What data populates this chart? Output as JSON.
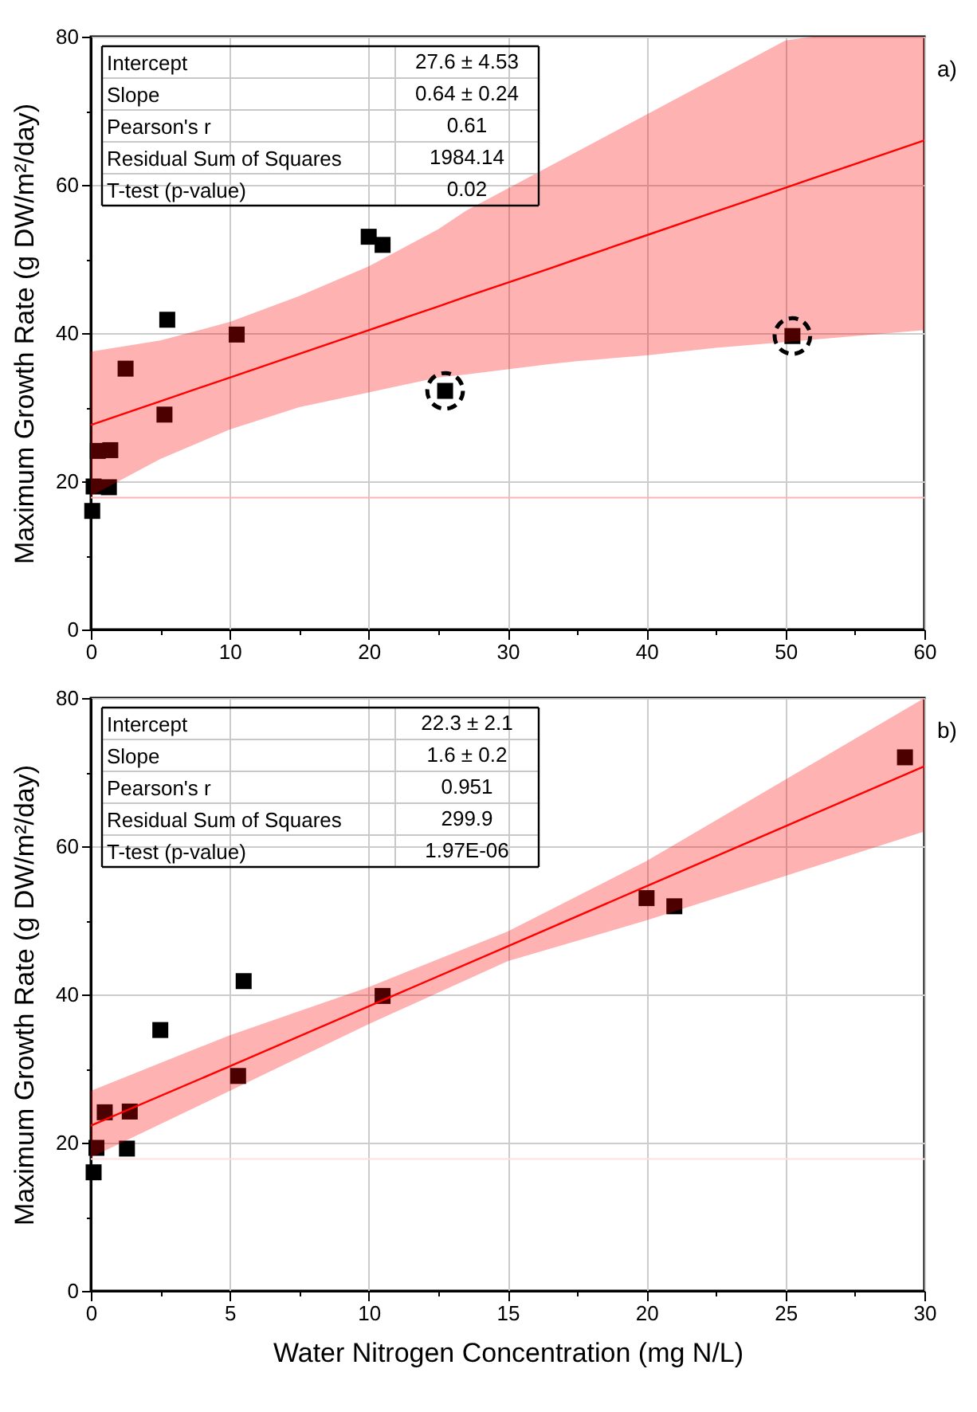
{
  "chart_data": [
    {
      "type": "scatter",
      "xlim": [
        0,
        60
      ],
      "ylim": [
        0,
        80
      ],
      "xticks": [
        0,
        {
          "value": 5,
          "label": null
        },
        10,
        {
          "value": 15,
          "label": null
        },
        20,
        {
          "value": 25,
          "label": null
        },
        30,
        {
          "value": 35,
          "label": null
        },
        40,
        {
          "value": 45,
          "label": null
        },
        50,
        {
          "value": 55,
          "label": null
        },
        60
      ],
      "yticks": [
        0,
        {
          "value": 10,
          "label": null
        },
        20,
        {
          "value": 30,
          "label": null
        },
        40,
        {
          "value": 50,
          "label": null
        },
        60,
        {
          "value": 70,
          "label": null
        },
        80
      ],
      "ylabel": "Maximum Growth Rate (g DW/m²/day)",
      "grid": true,
      "legend": false,
      "annotations": [
        "Intercept",
        "27.6 ± 4.53",
        "Slope",
        "0.64 ± 0.24",
        "Pearson's r",
        "0.61",
        "Residual Sum of Squares",
        "1984.14",
        "T-test (p-value)",
        "0.02",
        "a)"
      ],
      "ref_lines": [
        {
          "axis": "y",
          "value": 17.8,
          "color": "#ffb3b3"
        }
      ],
      "series": [
        {
          "marker": "square",
          "color": "#000000",
          "x": [
            0.1,
            0.2,
            0.5,
            1.3,
            1.4,
            2.5,
            5.3,
            5.5,
            10.5,
            20,
            21,
            25.5,
            50.5
          ],
          "values": [
            16,
            19.3,
            24.1,
            19.2,
            24.2,
            35.2,
            29,
            41.8,
            39.8,
            53,
            51.9,
            32.2,
            39.6
          ]
        },
        {
          "type": "line",
          "color": "#ff0000",
          "x": [
            0,
            5,
            10,
            15,
            20,
            25,
            27,
            33,
            35,
            40,
            45,
            50,
            52,
            55,
            60
          ],
          "values": [
            27.6,
            30.8,
            34,
            37.2,
            40.4,
            43.6,
            44.9,
            48.7,
            50,
            53.2,
            56.4,
            59.6,
            60.9,
            62.8,
            66
          ],
          "lower": [
            18,
            23,
            27,
            30,
            32,
            34,
            34.4,
            35.8,
            36.2,
            37,
            38,
            38.8,
            39.1,
            39.6,
            40.4
          ],
          "upper": [
            37.5,
            39,
            41.5,
            45,
            49,
            54,
            56.5,
            62.5,
            64.5,
            69.5,
            74.5,
            79.5,
            80,
            80,
            80
          ]
        },
        {
          "marker": "circle",
          "line_style": "dashed",
          "color": "#000000",
          "x": [
            25.5,
            50.5
          ],
          "values": [
            32.2,
            39.6
          ]
        }
      ]
    },
    {
      "type": "scatter",
      "xlim": [
        0,
        30
      ],
      "ylim": [
        0,
        80
      ],
      "xticks": [
        0,
        {
          "value": 2.5,
          "label": null
        },
        5,
        {
          "value": 7.5,
          "label": null
        },
        10,
        {
          "value": 12.5,
          "label": null
        },
        15,
        {
          "value": 17.5,
          "label": null
        },
        20,
        {
          "value": 22.5,
          "label": null
        },
        25,
        {
          "value": 27.5,
          "label": null
        },
        30
      ],
      "yticks": [
        0,
        {
          "value": 10,
          "label": null
        },
        20,
        {
          "value": 30,
          "label": null
        },
        40,
        {
          "value": 50,
          "label": null
        },
        60,
        {
          "value": 70,
          "label": null
        },
        80
      ],
      "xlabel": "Water Nitrogen Concentration (mg N/L)",
      "ylabel": "Maximum Growth Rate (g DW/m²/day)",
      "grid": true,
      "legend": false,
      "annotations": [
        "Intercept",
        "22.3 ± 2.1",
        "Slope",
        "1.6 ± 0.2",
        "Pearson's r",
        "0.951",
        "Residual Sum of Squares",
        "299.9",
        "T-test (p-value)",
        "1.97E-06",
        "b)"
      ],
      "ref_lines": [
        {
          "axis": "y",
          "value": 17.8,
          "color": "#ffe0e0"
        }
      ],
      "series": [
        {
          "marker": "square",
          "color": "#000000",
          "x": [
            0.1,
            0.2,
            0.5,
            1.3,
            1.4,
            2.5,
            5.3,
            5.5,
            10.5,
            20,
            21,
            29.3
          ],
          "values": [
            16,
            19.3,
            24.1,
            19.2,
            24.2,
            35.2,
            29,
            41.8,
            39.8,
            53,
            51.9,
            72
          ]
        },
        {
          "type": "line",
          "color": "#ff0000",
          "x": [
            0,
            5,
            10,
            15,
            20,
            25,
            30
          ],
          "values": [
            22.3,
            30.3,
            38.4,
            46.5,
            54.6,
            62.7,
            70.8
          ],
          "lower": [
            18,
            27,
            36,
            44.5,
            50,
            56,
            62
          ],
          "upper": [
            27,
            34.5,
            41,
            48.5,
            58,
            69,
            80
          ]
        }
      ]
    }
  ]
}
